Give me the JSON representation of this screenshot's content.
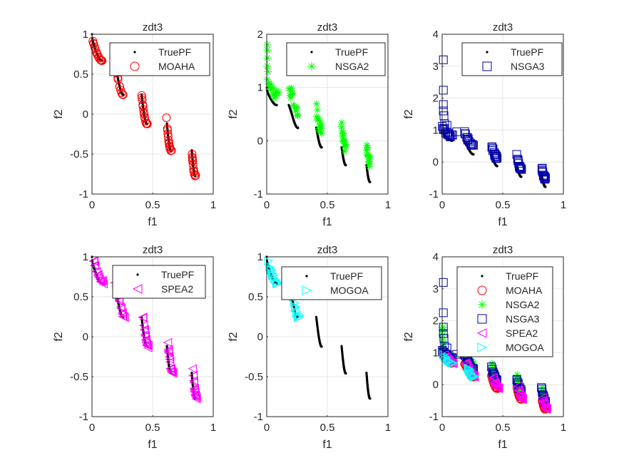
{
  "chart_data": [
    {
      "type": "scatter",
      "title": "zdt3",
      "xlabel": "f1",
      "ylabel": "f2",
      "xlim": [
        0,
        1
      ],
      "ylim": [
        -1,
        1
      ],
      "xticks": [
        "0",
        "0.5",
        "1"
      ],
      "yticks": [
        "-1",
        "-0.5",
        "0",
        "0.5",
        "1"
      ],
      "grid": true,
      "legend_position": "top-right",
      "series": [
        {
          "name": "TruePF",
          "marker": "dot",
          "color": "#000000",
          "segments": [
            [
              0,
              0.083
            ],
            [
              0.182,
              0.258
            ],
            [
              0.409,
              0.454
            ],
            [
              0.618,
              0.653
            ],
            [
              0.823,
              0.852
            ]
          ]
        },
        {
          "name": "MOAHA",
          "marker": "circle",
          "color": "#ff0000",
          "offset": 0.0,
          "spread": 0.0
        }
      ]
    },
    {
      "type": "scatter",
      "title": "zdt3",
      "xlabel": "f1",
      "ylabel": "f2",
      "xlim": [
        0,
        1
      ],
      "ylim": [
        -1,
        2
      ],
      "xticks": [
        "0",
        "0.5",
        "1"
      ],
      "yticks": [
        "-1",
        "0",
        "1",
        "2"
      ],
      "grid": true,
      "legend_position": "top-right",
      "series": [
        {
          "name": "TruePF",
          "marker": "dot",
          "color": "#000000",
          "segments": [
            [
              0,
              0.083
            ],
            [
              0.182,
              0.258
            ],
            [
              0.409,
              0.454
            ],
            [
              0.618,
              0.653
            ],
            [
              0.823,
              0.852
            ]
          ]
        },
        {
          "name": "NSGA2",
          "marker": "asterisk",
          "color": "#00ff00",
          "offset": 0.3,
          "spread": 0.25,
          "extra_points": [
            [
              0.005,
              1.8
            ],
            [
              0.005,
              1.7
            ],
            [
              0.005,
              1.55
            ],
            [
              0.005,
              1.4
            ],
            [
              0.01,
              1.3
            ],
            [
              0.1,
              0.9
            ]
          ]
        }
      ]
    },
    {
      "type": "scatter",
      "title": "zdt3",
      "xlabel": "f1",
      "ylabel": "f2",
      "xlim": [
        0,
        1
      ],
      "ylim": [
        -1,
        4
      ],
      "xticks": [
        "0",
        "0.5",
        "1"
      ],
      "yticks": [
        "-1",
        "0",
        "1",
        "2",
        "3",
        "4"
      ],
      "grid": true,
      "legend_position": "top-right",
      "series": [
        {
          "name": "TruePF",
          "marker": "dot",
          "color": "#000000",
          "segments": [
            [
              0,
              0.083
            ],
            [
              0.182,
              0.258
            ],
            [
              0.409,
              0.454
            ],
            [
              0.618,
              0.653
            ],
            [
              0.823,
              0.852
            ]
          ]
        },
        {
          "name": "NSGA3",
          "marker": "square",
          "color": "#0000aa",
          "offset": 0.25,
          "spread": 0.1,
          "extra_points": [
            [
              0.01,
              3.2
            ],
            [
              0.01,
              2.25
            ],
            [
              0.01,
              1.8
            ],
            [
              0.01,
              1.6
            ],
            [
              0.015,
              1.45
            ],
            [
              0.02,
              1.2
            ],
            [
              0.04,
              1.15
            ],
            [
              0.12,
              0.95
            ]
          ]
        }
      ]
    },
    {
      "type": "scatter",
      "title": "zdt3",
      "xlabel": "f1",
      "ylabel": "f2",
      "xlim": [
        0,
        1
      ],
      "ylim": [
        -1,
        1
      ],
      "xticks": [
        "0",
        "0.5",
        "1"
      ],
      "yticks": [
        "-1",
        "-0.5",
        "0",
        "0.5",
        "1"
      ],
      "grid": true,
      "legend_position": "top-right",
      "series": [
        {
          "name": "TruePF",
          "marker": "dot",
          "color": "#000000",
          "segments": [
            [
              0,
              0.083
            ],
            [
              0.182,
              0.258
            ],
            [
              0.409,
              0.454
            ],
            [
              0.618,
              0.653
            ],
            [
              0.823,
              0.852
            ]
          ]
        },
        {
          "name": "SPEA2",
          "marker": "triangle-left",
          "color": "#ff00ff",
          "offset": 0.0,
          "spread": 0.05
        }
      ]
    },
    {
      "type": "scatter",
      "title": "zdt3",
      "xlabel": "f1",
      "ylabel": "f2",
      "xlim": [
        0,
        1
      ],
      "ylim": [
        -1,
        1
      ],
      "xticks": [
        "0",
        "0.5",
        "1"
      ],
      "yticks": [
        "-1",
        "-0.5",
        "0",
        "0.5",
        "1"
      ],
      "grid": true,
      "legend_position": "top-right",
      "series": [
        {
          "name": "TruePF",
          "marker": "dot",
          "color": "#000000",
          "segments": [
            [
              0,
              0.083
            ],
            [
              0.182,
              0.258
            ],
            [
              0.409,
              0.454
            ],
            [
              0.618,
              0.653
            ],
            [
              0.823,
              0.852
            ]
          ]
        },
        {
          "name": "MOGOA",
          "marker": "triangle-right",
          "color": "#00ffff",
          "offset": 0.0,
          "spread": 0.04,
          "segments_used": [
            0,
            1
          ],
          "seg1_range": [
            0.2,
            0.26
          ]
        }
      ]
    },
    {
      "type": "scatter",
      "title": "zdt3",
      "xlabel": "f1",
      "ylabel": "f2",
      "xlim": [
        0,
        1
      ],
      "ylim": [
        -1,
        4
      ],
      "xticks": [
        "0",
        "0.5",
        "1"
      ],
      "yticks": [
        "-1",
        "0",
        "1",
        "2",
        "3",
        "4"
      ],
      "grid": true,
      "legend_position": "top-right",
      "series": [
        {
          "name": "TruePF",
          "marker": "dot",
          "color": "#000000",
          "segments": [
            [
              0,
              0.083
            ],
            [
              0.182,
              0.258
            ],
            [
              0.409,
              0.454
            ],
            [
              0.618,
              0.653
            ],
            [
              0.823,
              0.852
            ]
          ]
        },
        {
          "name": "MOAHA",
          "marker": "circle",
          "color": "#ff0000",
          "offset": 0.0,
          "spread": 0.0
        },
        {
          "name": "NSGA2",
          "marker": "asterisk",
          "color": "#00ff00",
          "offset": 0.3,
          "spread": 0.25,
          "extra_points": [
            [
              0.005,
              1.8
            ],
            [
              0.005,
              1.7
            ],
            [
              0.005,
              1.55
            ],
            [
              0.005,
              1.4
            ],
            [
              0.01,
              1.3
            ]
          ]
        },
        {
          "name": "NSGA3",
          "marker": "square",
          "color": "#0000aa",
          "offset": 0.25,
          "spread": 0.1,
          "extra_points": [
            [
              0.01,
              3.2
            ],
            [
              0.01,
              2.25
            ],
            [
              0.01,
              1.8
            ],
            [
              0.01,
              1.6
            ],
            [
              0.015,
              1.45
            ],
            [
              0.02,
              1.2
            ],
            [
              0.04,
              1.15
            ],
            [
              0.12,
              0.95
            ]
          ]
        },
        {
          "name": "SPEA2",
          "marker": "triangle-left",
          "color": "#ff00ff",
          "offset": 0.0,
          "spread": 0.05
        },
        {
          "name": "MOGOA",
          "marker": "triangle-right",
          "color": "#00ffff",
          "offset": 0.0,
          "spread": 0.04,
          "segments_used": [
            0,
            1
          ],
          "seg1_range": [
            0.2,
            0.26
          ]
        }
      ]
    }
  ]
}
